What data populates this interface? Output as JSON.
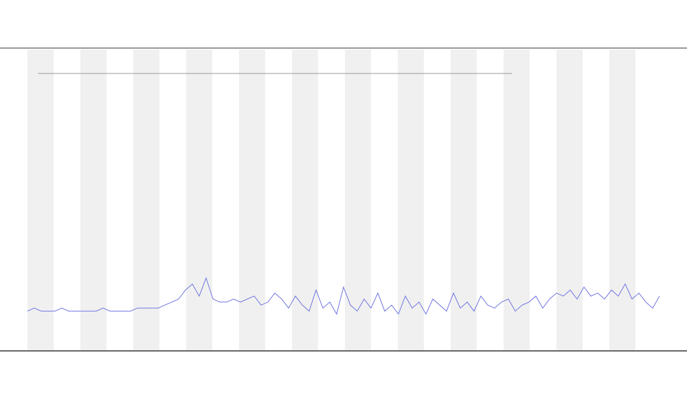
{
  "chart_data": {
    "type": "line",
    "values": [
      13,
      14,
      13,
      13,
      13,
      14,
      13,
      13,
      13,
      13,
      13,
      14,
      13,
      13,
      13,
      13,
      14,
      14,
      14,
      14,
      15,
      16,
      17,
      20,
      22,
      18,
      24,
      17,
      16,
      16,
      17,
      16,
      17,
      18,
      15,
      16,
      19,
      17,
      14,
      18,
      15,
      13,
      20,
      14,
      16,
      12,
      21,
      15,
      13,
      17,
      14,
      19,
      13,
      15,
      12,
      18,
      14,
      16,
      12,
      17,
      15,
      13,
      19,
      14,
      16,
      13,
      18,
      15,
      14,
      16,
      17,
      13,
      15,
      16,
      18,
      14,
      17,
      19,
      18,
      20,
      17,
      21,
      18,
      19,
      17,
      20,
      18,
      22,
      17,
      19,
      16,
      14,
      18
    ],
    "color": "#6f74e0",
    "ylim": [
      0,
      100
    ]
  }
}
